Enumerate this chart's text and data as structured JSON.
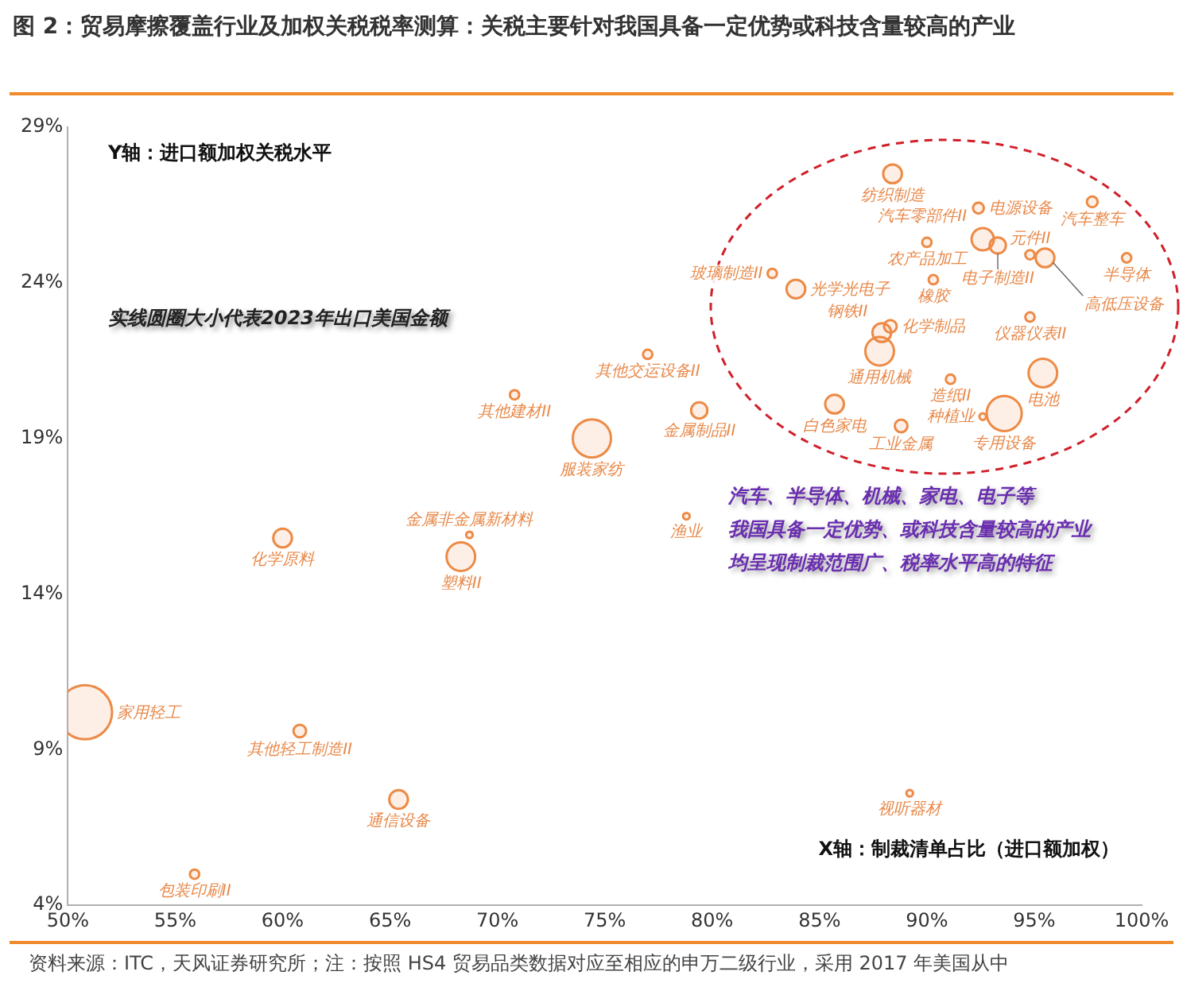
{
  "chart_data": {
    "type": "bubble",
    "title": "图 2：贸易摩擦覆盖行业及加权关税税率测算：关税主要针对我国具备一定优势或科技含量较高的产业",
    "xlabel": "X轴：制裁清单占比（进口额加权）",
    "ylabel": "Y轴：进口额加权关税水平",
    "series": [
      {
        "color": "#ed8a45",
        "x": [
          50.8,
          55.9,
          60.0,
          60.8,
          65.4,
          68.3,
          68.7,
          70.8,
          74.4,
          77.0,
          79.4,
          78.8,
          89.2,
          88.4,
          92.4,
          93.3,
          92.6,
          97.7,
          99.3,
          95.5,
          94.8,
          94.8,
          95.4,
          93.6,
          92.6,
          90.0,
          90.3,
          88.3,
          87.9,
          87.8,
          82.8,
          83.9,
          91.1,
          85.7,
          88.8
        ],
        "values": [
          10.2,
          5.0,
          15.8,
          9.6,
          7.4,
          15.2,
          15.9,
          20.4,
          19.0,
          21.7,
          19.9,
          16.5,
          7.6,
          27.5,
          26.4,
          25.2,
          25.4,
          26.6,
          24.8,
          24.8,
          24.9,
          22.9,
          21.1,
          19.8,
          19.7,
          25.3,
          24.1,
          22.6,
          22.4,
          21.8,
          24.3,
          23.8,
          20.9,
          20.1,
          19.4
        ],
        "sizes": [
          1,
          0.03,
          0.12,
          0.055,
          0.12,
          0.28,
          0.015,
          0.03,
          0.5,
          0.03,
          0.09,
          0.015,
          0.015,
          0.12,
          0.04,
          0.09,
          0.17,
          0.04,
          0.03,
          0.12,
          0.03,
          0.03,
          0.28,
          0.42,
          0.015,
          0.03,
          0.03,
          0.055,
          0.12,
          0.28,
          0.03,
          0.12,
          0.03,
          0.12,
          0.055
        ]
      }
    ],
    "xlim": [
      50,
      100
    ],
    "xticks": [
      {
        "value": 50,
        "label": "50%"
      },
      {
        "value": 55,
        "label": "55%"
      },
      {
        "value": 60,
        "label": "60%"
      },
      {
        "value": 65,
        "label": "65%"
      },
      {
        "value": 70,
        "label": "70%"
      },
      {
        "value": 75,
        "label": "75%"
      },
      {
        "value": 80,
        "label": "80%"
      },
      {
        "value": 85,
        "label": "85%"
      },
      {
        "value": 90,
        "label": "90%"
      },
      {
        "value": 95,
        "label": "95%"
      },
      {
        "value": 100,
        "label": "100%"
      }
    ],
    "ylim": [
      4,
      29
    ],
    "yticks": [
      {
        "value": 4,
        "label": "4%"
      },
      {
        "value": 9,
        "label": "9%"
      },
      {
        "value": 14,
        "label": "14%"
      },
      {
        "value": 19,
        "label": "19%"
      },
      {
        "value": 24,
        "label": "24%"
      },
      {
        "value": 29,
        "label": "29%"
      }
    ],
    "grid": false,
    "legend": false,
    "annotations": [
      "实线圆圈大小代表2023年出口美国金额",
      "汽车、半导体、机械、家电、电子等",
      "我国具备一定优势、或科技含量较高的产业",
      "均呈现制裁范围广、税率水平高的特征",
      "资料来源：ITC，天风证券研究所；注：按照 HS4 贸易品类数据对应至相应的申万二级行业，采用 2017 年美国从中",
      {
        "text": "家用轻工",
        "x": 50.8,
        "y": 10.2
      },
      {
        "text": "包装印刷II",
        "x": 55.9,
        "y": 5.0
      },
      {
        "text": "化学原料",
        "x": 60.0,
        "y": 15.8
      },
      {
        "text": "其他轻工制造II",
        "x": 60.8,
        "y": 9.6
      },
      {
        "text": "通信设备",
        "x": 65.4,
        "y": 7.4
      },
      {
        "text": "塑料II",
        "x": 68.3,
        "y": 15.2
      },
      {
        "text": "金属非金属新材料",
        "x": 68.7,
        "y": 15.9
      },
      {
        "text": "其他建材II",
        "x": 70.8,
        "y": 20.4
      },
      {
        "text": "服装家纺",
        "x": 74.4,
        "y": 19.0
      },
      {
        "text": "其他交运设备II",
        "x": 77.0,
        "y": 21.7
      },
      {
        "text": "金属制品II",
        "x": 79.4,
        "y": 19.9
      },
      {
        "text": "渔业",
        "x": 78.8,
        "y": 16.5
      },
      {
        "text": "视听器材",
        "x": 89.2,
        "y": 7.6
      },
      {
        "text": "纺织制造",
        "x": 88.4,
        "y": 27.5
      },
      {
        "text": "电源设备",
        "x": 92.4,
        "y": 26.4
      },
      {
        "text": "电子制造II",
        "x": 93.3,
        "y": 25.2
      },
      {
        "text": "汽车零部件II",
        "x": 92.6,
        "y": 25.4
      },
      {
        "text": "汽车整车",
        "x": 97.7,
        "y": 26.6
      },
      {
        "text": "半导体",
        "x": 99.3,
        "y": 24.8
      },
      {
        "text": "高低压设备",
        "x": 95.5,
        "y": 24.8
      },
      {
        "text": "元件II",
        "x": 94.8,
        "y": 24.9
      },
      {
        "text": "仪器仪表II",
        "x": 94.8,
        "y": 22.9
      },
      {
        "text": "电池",
        "x": 95.4,
        "y": 21.1
      },
      {
        "text": "专用设备",
        "x": 93.6,
        "y": 19.8
      },
      {
        "text": "种植业",
        "x": 92.6,
        "y": 19.7
      },
      {
        "text": "农产品加工",
        "x": 90.0,
        "y": 25.3
      },
      {
        "text": "橡胶",
        "x": 90.3,
        "y": 24.1
      },
      {
        "text": "化学制品",
        "x": 88.3,
        "y": 22.6
      },
      {
        "text": "钢铁II",
        "x": 87.9,
        "y": 22.4
      },
      {
        "text": "通用机械",
        "x": 87.8,
        "y": 21.8
      },
      {
        "text": "玻璃制造II",
        "x": 82.8,
        "y": 24.3
      },
      {
        "text": "光学光电子",
        "x": 83.9,
        "y": 23.8
      },
      {
        "text": "造纸II",
        "x": 91.1,
        "y": 20.9
      },
      {
        "text": "白色家电",
        "x": 85.7,
        "y": 20.1
      },
      {
        "text": "工业金属",
        "x": 88.8,
        "y": 19.4
      }
    ]
  }
}
